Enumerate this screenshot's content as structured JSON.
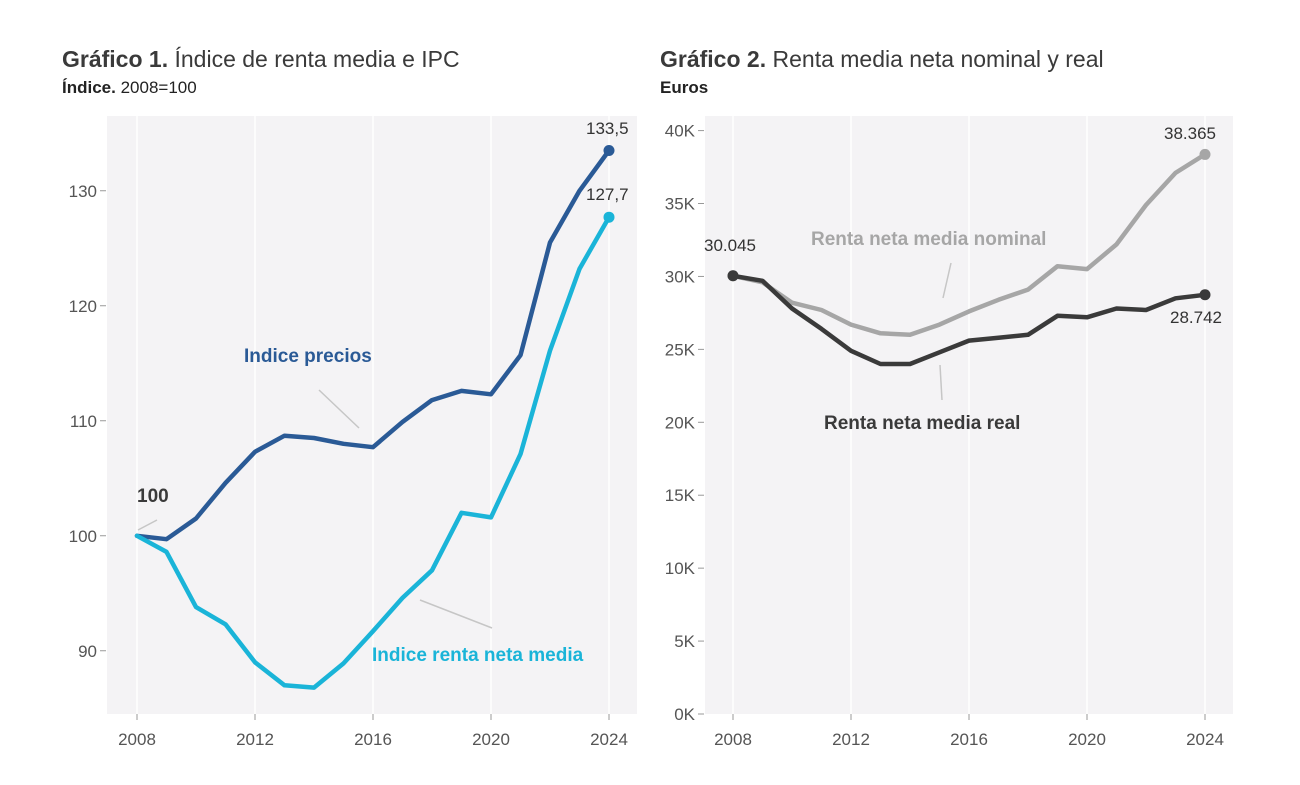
{
  "chart_data": [
    {
      "type": "line",
      "title_bold": "Gráfico 1.",
      "title_rest": " Índice de renta media e IPC",
      "subtitle_bold": "Índice.",
      "subtitle_rest": " 2008=100",
      "xlabel": "",
      "ylabel": "",
      "xlim": [
        2008,
        2024
      ],
      "ylim": [
        84.5,
        136.5
      ],
      "x_ticks": [
        "2008",
        "2012",
        "2016",
        "2020",
        "2024"
      ],
      "y_ticks": [
        "90",
        "100",
        "110",
        "120",
        "130"
      ],
      "x": [
        2008,
        2009,
        2010,
        2011,
        2012,
        2013,
        2014,
        2015,
        2016,
        2017,
        2018,
        2019,
        2020,
        2021,
        2022,
        2023,
        2024
      ],
      "series": [
        {
          "name": "Indice precios",
          "color": "#2a5a96",
          "values": [
            100,
            99.7,
            101.5,
            104.6,
            107.3,
            108.7,
            108.5,
            108.0,
            107.7,
            109.9,
            111.8,
            112.6,
            112.3,
            115.7,
            125.5,
            130.0,
            133.5
          ]
        },
        {
          "name": "Indice renta neta media",
          "color": "#1ab4d8",
          "values": [
            100,
            98.6,
            93.8,
            92.3,
            89.0,
            87.0,
            86.8,
            88.9,
            91.7,
            94.6,
            97.0,
            102.0,
            101.6,
            107.1,
            116.1,
            123.2,
            127.7
          ]
        }
      ],
      "annotations": {
        "start": "100",
        "end_precios": "133,5",
        "end_renta": "127,7"
      }
    },
    {
      "type": "line",
      "title_bold": "Gráfico 2.",
      "title_rest": " Renta media neta nominal y real",
      "subtitle_bold": "Euros",
      "xlabel": "",
      "ylabel": "",
      "xlim": [
        2008,
        2024
      ],
      "ylim": [
        0,
        41000
      ],
      "x_ticks": [
        "2008",
        "2012",
        "2016",
        "2020",
        "2024"
      ],
      "y_ticks": [
        "0K",
        "5K",
        "10K",
        "15K",
        "20K",
        "25K",
        "30K",
        "35K",
        "40K"
      ],
      "x": [
        2008,
        2009,
        2010,
        2011,
        2012,
        2013,
        2014,
        2015,
        2016,
        2017,
        2018,
        2019,
        2020,
        2021,
        2022,
        2023,
        2024
      ],
      "series": [
        {
          "name": "Renta neta media nominal",
          "color": "#a6a6a6",
          "values": [
            30045,
            29600,
            28200,
            27700,
            26700,
            26100,
            26000,
            26700,
            27600,
            28400,
            29100,
            30700,
            30500,
            32200,
            34900,
            37100,
            38365
          ]
        },
        {
          "name": "Renta neta media real",
          "color": "#3a3a3a",
          "values": [
            30045,
            29700,
            27800,
            26400,
            24900,
            24000,
            24000,
            24800,
            25600,
            25800,
            26000,
            27300,
            27200,
            27800,
            27700,
            28500,
            28742
          ]
        }
      ],
      "annotations": {
        "start": "30.045",
        "end_nominal": "38.365",
        "end_real": "28.742"
      }
    }
  ]
}
